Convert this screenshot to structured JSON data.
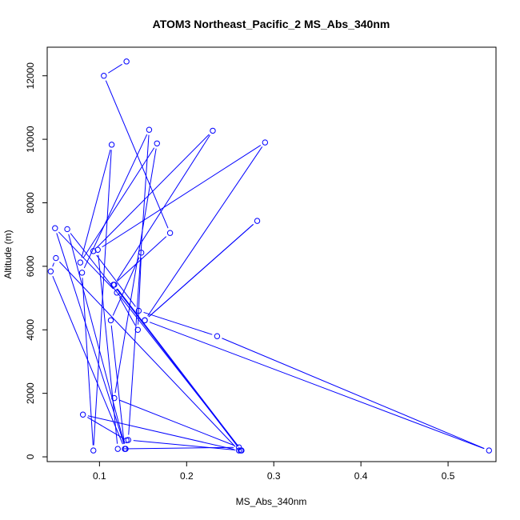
{
  "chart_data": {
    "type": "line",
    "title": "ATOM3 Northeast_Pacific_2 MS_Abs_340nm",
    "xlabel": "MS_Abs_340nm",
    "ylabel": "Altitude (m)",
    "xlim": [
      0.04,
      0.555
    ],
    "ylim": [
      -150,
      12900
    ],
    "xticks": [
      0.1,
      0.2,
      0.3,
      0.4,
      0.5
    ],
    "xtick_labels": [
      "0.1",
      "0.2",
      "0.3",
      "0.4",
      "0.5"
    ],
    "yticks": [
      0,
      2000,
      4000,
      6000,
      8000,
      10000,
      12000
    ],
    "ytick_labels": [
      "0",
      "2000",
      "4000",
      "6000",
      "8000",
      "10000",
      "12000"
    ],
    "grid": false,
    "series": [
      {
        "color": "#0000ff",
        "marker": "open-circle",
        "points": [
          [
            0.131,
            12450
          ],
          [
            0.105,
            12000
          ],
          [
            0.181,
            7050
          ],
          [
            0.116,
            5420
          ],
          [
            0.262,
            200
          ],
          [
            0.133,
            530
          ],
          [
            0.157,
            10300
          ],
          [
            0.08,
            5800
          ],
          [
            0.093,
            200
          ],
          [
            0.114,
            9830
          ],
          [
            0.078,
            6120
          ],
          [
            0.166,
            9870
          ],
          [
            0.117,
            1850
          ],
          [
            0.26,
            300
          ],
          [
            0.121,
            250
          ],
          [
            0.098,
            6520
          ],
          [
            0.29,
            9900
          ],
          [
            0.152,
            4300
          ],
          [
            0.281,
            7430
          ],
          [
            0.152,
            4300
          ],
          [
            0.547,
            200
          ],
          [
            0.235,
            3800
          ],
          [
            0.145,
            4600
          ],
          [
            0.093,
            6480
          ],
          [
            0.23,
            10270
          ],
          [
            0.117,
            5420
          ],
          [
            0.263,
            200
          ],
          [
            0.063,
            7170
          ],
          [
            0.13,
            250
          ],
          [
            0.049,
            7200
          ],
          [
            0.12,
            5170
          ],
          [
            0.144,
            4000
          ],
          [
            0.148,
            6430
          ],
          [
            0.113,
            4300
          ],
          [
            0.129,
            250
          ],
          [
            0.044,
            5840
          ],
          [
            0.05,
            6260
          ],
          [
            0.26,
            200
          ],
          [
            0.081,
            1330
          ],
          [
            0.131,
            520
          ]
        ]
      }
    ]
  }
}
